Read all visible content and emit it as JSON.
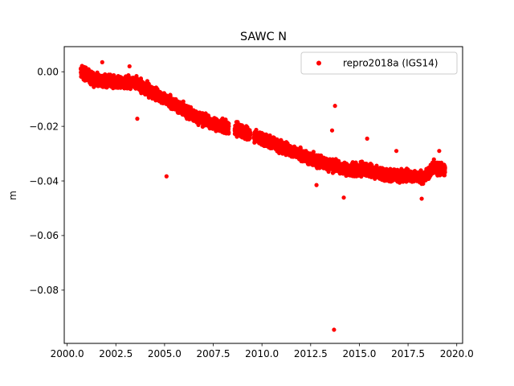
{
  "chart_data": {
    "type": "scatter",
    "title": "SAWC N",
    "xlabel": "",
    "ylabel": "m",
    "xlim": [
      1999.85,
      2020.3
    ],
    "ylim": [
      -0.0995,
      0.0092
    ],
    "x_ticks": [
      2000.0,
      2002.5,
      2005.0,
      2007.5,
      2010.0,
      2012.5,
      2015.0,
      2017.5,
      2020.0
    ],
    "x_tick_labels": [
      "2000.0",
      "2002.5",
      "2005.0",
      "2007.5",
      "2010.0",
      "2012.5",
      "2015.0",
      "2017.5",
      "2020.0"
    ],
    "y_ticks": [
      0.0,
      -0.02,
      -0.04,
      -0.06,
      -0.08
    ],
    "y_tick_labels": [
      "0.00",
      "−0.02",
      "−0.04",
      "−0.06",
      "−0.08"
    ],
    "grid": false,
    "legend_position": "top-right",
    "series": [
      {
        "name": "repro2018a (IGS14)",
        "color": "#ff0000",
        "marker": "circle",
        "trend": [
          [
            2000.7,
            0.0
          ],
          [
            2001.5,
            -0.003
          ],
          [
            2002.5,
            -0.004
          ],
          [
            2003.5,
            -0.004
          ],
          [
            2004.5,
            -0.008
          ],
          [
            2005.5,
            -0.012
          ],
          [
            2006.5,
            -0.016
          ],
          [
            2007.5,
            -0.019
          ],
          [
            2008.5,
            -0.021
          ],
          [
            2009.5,
            -0.023
          ],
          [
            2010.5,
            -0.026
          ],
          [
            2011.5,
            -0.029
          ],
          [
            2012.5,
            -0.032
          ],
          [
            2013.5,
            -0.034
          ],
          [
            2014.5,
            -0.036
          ],
          [
            2015.5,
            -0.036
          ],
          [
            2016.5,
            -0.038
          ],
          [
            2017.5,
            -0.038
          ],
          [
            2018.3,
            -0.039
          ],
          [
            2018.8,
            -0.035
          ],
          [
            2019.4,
            -0.036
          ]
        ],
        "gaps": [
          [
            2008.3,
            2008.6
          ],
          [
            2009.4,
            2009.6
          ]
        ],
        "outliers": [
          [
            2013.7,
            -0.0945
          ],
          [
            2005.1,
            -0.0383
          ],
          [
            2013.75,
            -0.0125
          ],
          [
            2003.6,
            -0.0172
          ],
          [
            2014.2,
            -0.0461
          ],
          [
            2013.6,
            -0.0215
          ],
          [
            2015.4,
            -0.0245
          ],
          [
            2016.9,
            -0.029
          ],
          [
            2019.1,
            -0.029
          ],
          [
            2018.2,
            -0.0465
          ],
          [
            2001.8,
            0.0035
          ],
          [
            2012.8,
            -0.0415
          ],
          [
            2003.2,
            0.002
          ]
        ]
      }
    ]
  }
}
